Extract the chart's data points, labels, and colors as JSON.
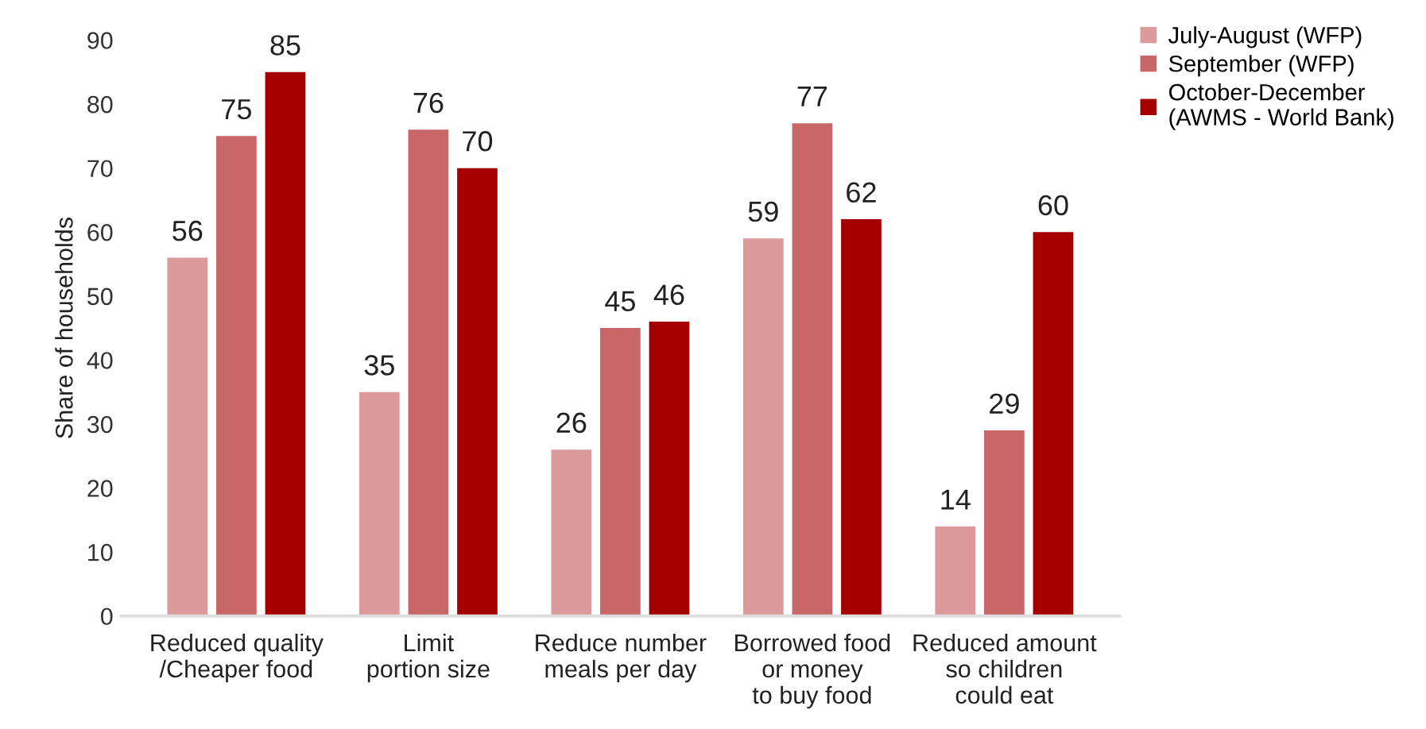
{
  "chart_data": {
    "type": "bar",
    "ylabel": "Share of households",
    "categories": [
      "Reduced quality\n/Cheaper food",
      "Limit\nportion size",
      "Reduce number\nmeals per day",
      "Borrowed food\nor money\nto buy food",
      "Reduced amount\nso children\ncould eat"
    ],
    "series": [
      {
        "name": "July-August (WFP)",
        "color": "#dd9a9b",
        "values": [
          56,
          35,
          26,
          59,
          14
        ]
      },
      {
        "name": "September (WFP)",
        "color": "#c96667",
        "values": [
          75,
          76,
          45,
          77,
          29
        ]
      },
      {
        "name": "October-December\n(AWMS - World Bank)",
        "color": "#a50000",
        "values": [
          85,
          70,
          46,
          62,
          60
        ]
      }
    ],
    "ylim": [
      0,
      90
    ],
    "yticks": [
      0,
      10,
      20,
      30,
      40,
      50,
      60,
      70,
      80,
      90
    ],
    "data_labels": true,
    "grid": false,
    "legend": "top right"
  }
}
